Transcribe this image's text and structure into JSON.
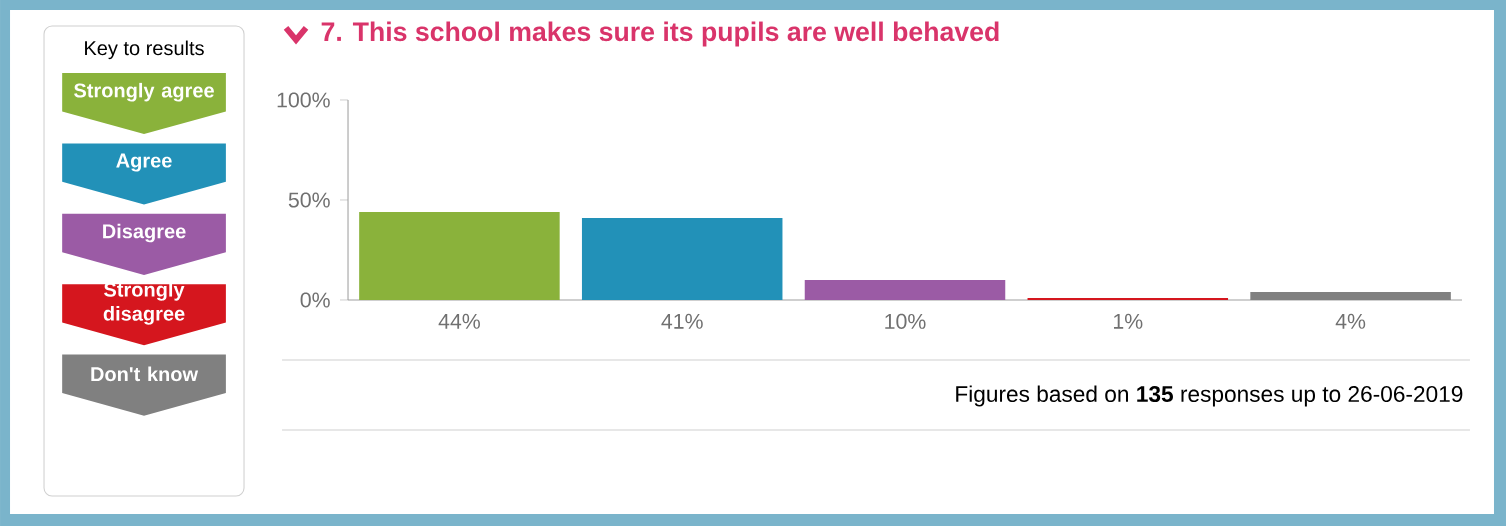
{
  "chart_data": {
    "type": "bar",
    "title": "7. This school makes sure its pupils are well behaved",
    "legend_title": "Key to results",
    "legend": "left",
    "categories": [
      null,
      null,
      null,
      null,
      null
    ],
    "series": [
      {
        "name": "Strongly agree",
        "color": "#8ab23b",
        "values": [
          44,
          null,
          null,
          null,
          null
        ],
        "value_labels": [
          "44%",
          null,
          null,
          null,
          null
        ]
      },
      {
        "name": "Agree",
        "color": "#2291b8",
        "values": [
          null,
          41,
          null,
          null,
          null
        ],
        "value_labels": [
          null,
          "41%",
          null,
          null,
          null
        ]
      },
      {
        "name": "Disagree",
        "color": "#9b5ba5",
        "values": [
          null,
          null,
          10,
          null,
          null
        ],
        "value_labels": [
          null,
          null,
          "10%",
          null,
          null
        ]
      },
      {
        "name": "Strongly disagree",
        "color": "#d5161e",
        "values": [
          null,
          null,
          null,
          1,
          null
        ],
        "value_labels": [
          null,
          null,
          null,
          "1%",
          null
        ]
      },
      {
        "name": "Don't know",
        "color": "#808080",
        "values": [
          null,
          null,
          null,
          null,
          4
        ],
        "value_labels": [
          null,
          null,
          null,
          null,
          "4%"
        ]
      }
    ],
    "ylim": [
      0,
      100
    ],
    "yticks": [
      {
        "value": 0,
        "label": "0%"
      },
      {
        "value": 50,
        "label": "50%"
      },
      {
        "value": 100,
        "label": "100%"
      }
    ],
    "annotations": [
      "Figures based on **135** responses up to 26-06-2019"
    ]
  }
}
